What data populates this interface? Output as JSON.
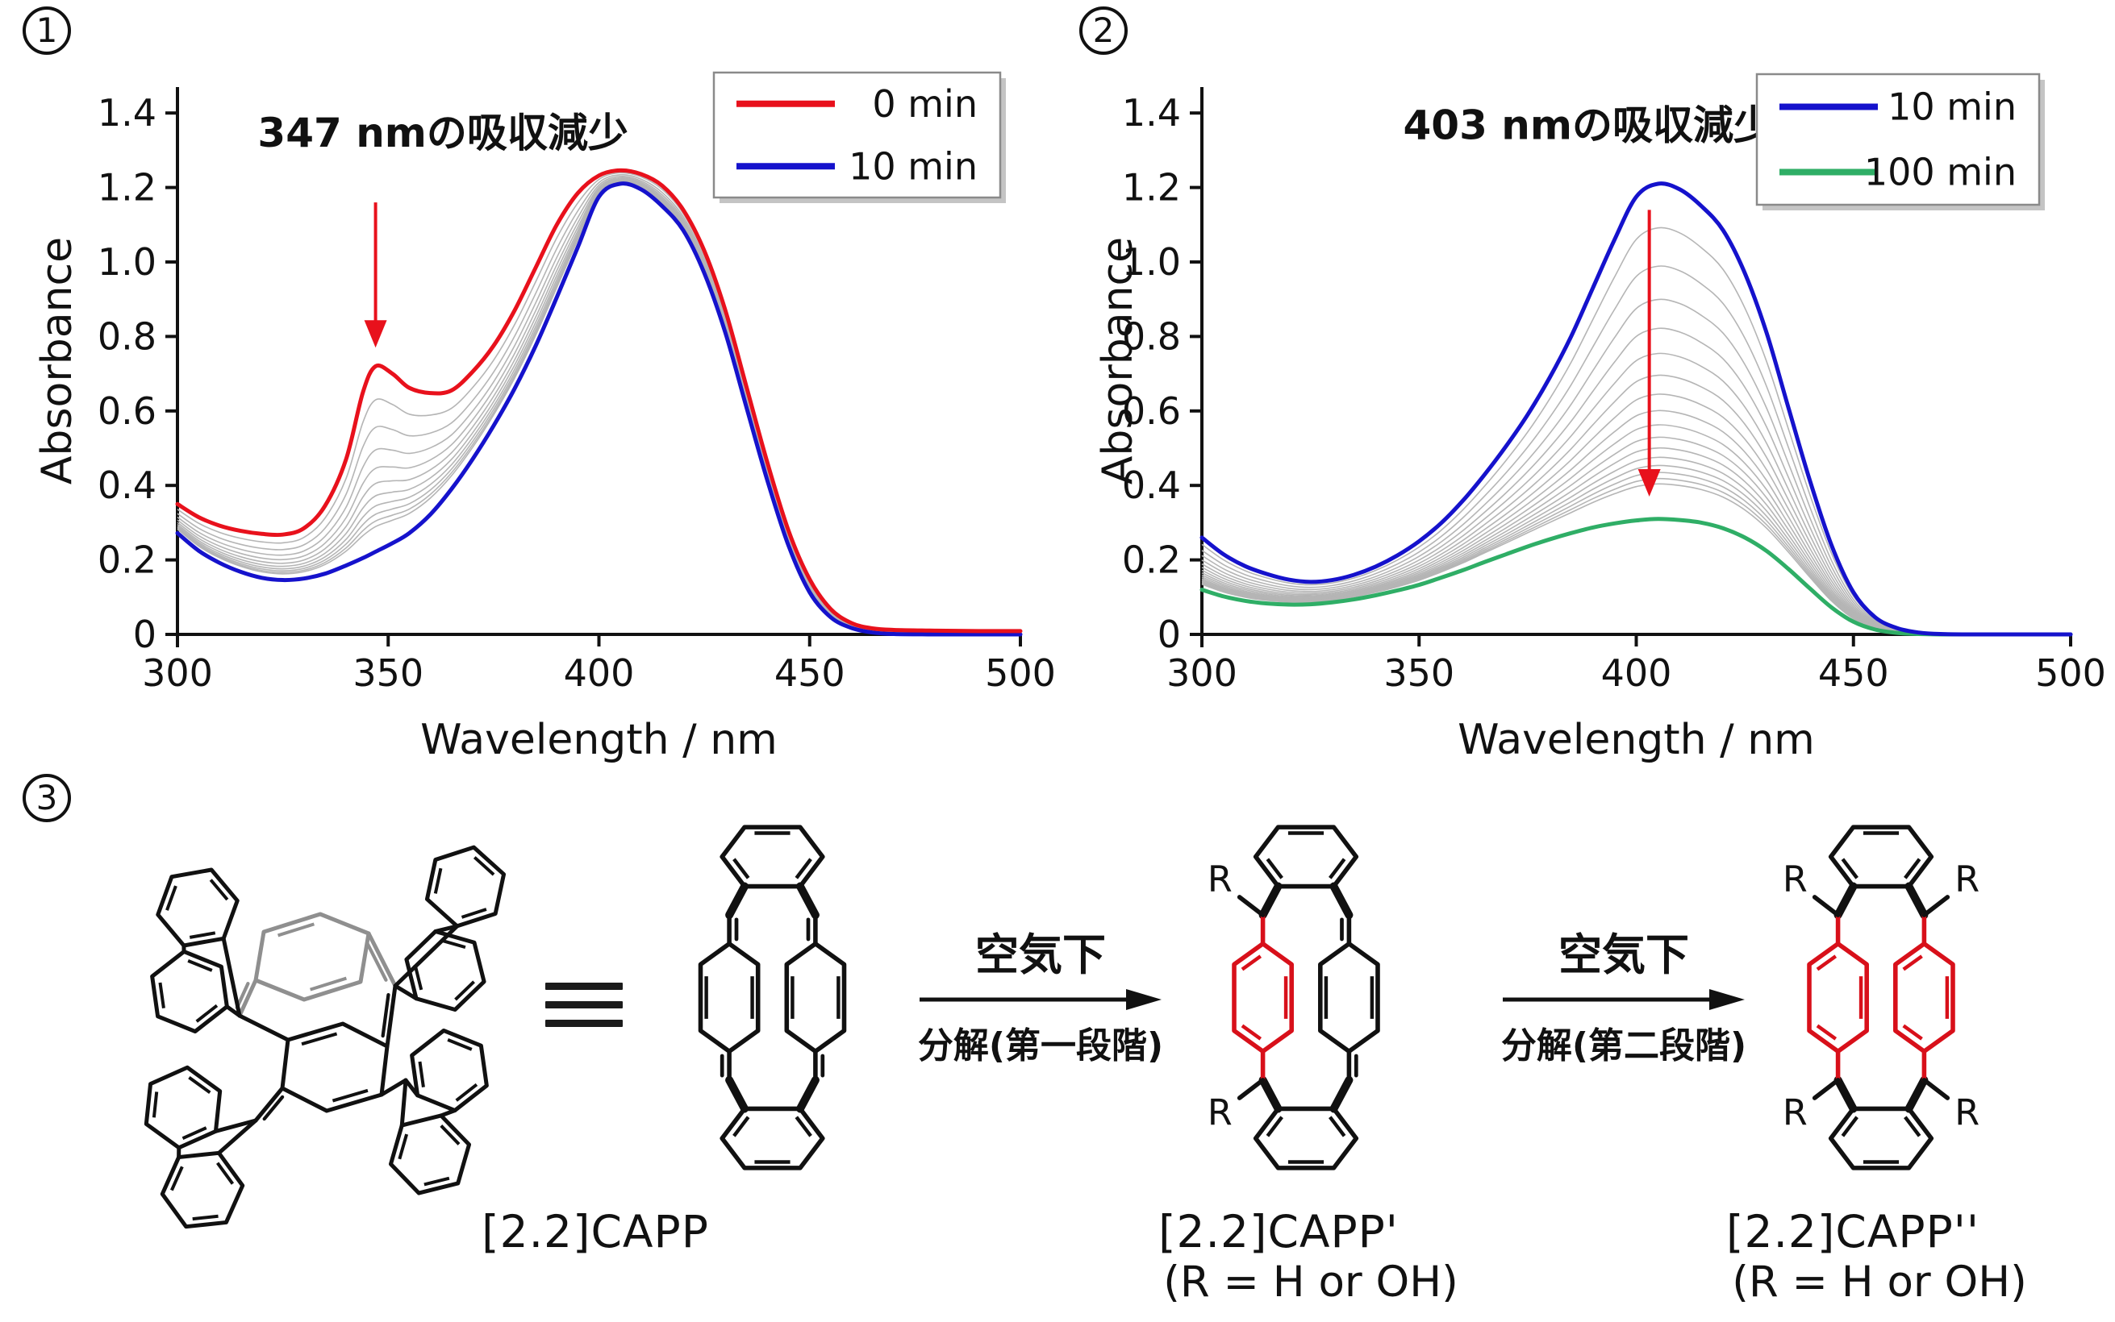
{
  "panels": [
    {
      "num": "1"
    },
    {
      "num": "2"
    },
    {
      "num": "3"
    }
  ],
  "colors": {
    "red": "#e8111c",
    "blue": "#1512cc",
    "green": "#2fae66",
    "gray_scan": "#b5b5b5",
    "struct_gray": "#8f8f8f",
    "struct_red": "#d8101a",
    "ink": "#111111"
  },
  "chart_data": [
    {
      "type": "line",
      "title": "",
      "xlabel": "Wavelength / nm",
      "ylabel": "Absorbance",
      "xlim": [
        300,
        500
      ],
      "ylim": [
        0,
        1.45
      ],
      "x_ticks": [
        "300",
        "350",
        "400",
        "450",
        "500"
      ],
      "y_ticks": [
        "0",
        "0.2",
        "0.4",
        "0.6",
        "0.8",
        "1.0",
        "1.2",
        "1.4"
      ],
      "grid": "off",
      "legend_position": "top-right",
      "legend": [
        {
          "label": "0 min",
          "color": "#e8111c"
        },
        {
          "label": "10 min",
          "color": "#1512cc"
        }
      ],
      "annotation": {
        "text": "347 nmの吸収減少",
        "text_cx": 363,
        "text_y": 1.31,
        "arrow_x": 347,
        "arrow_from": 1.16,
        "arrow_to": 0.77,
        "color": "#e8111c"
      },
      "x": [
        300,
        305,
        310,
        315,
        320,
        325,
        330,
        335,
        340,
        344,
        347,
        351,
        355,
        360,
        365,
        370,
        375,
        380,
        385,
        390,
        395,
        400,
        405,
        410,
        415,
        420,
        425,
        430,
        435,
        440,
        445,
        450,
        455,
        460,
        465,
        470,
        480,
        490,
        500
      ],
      "series": [
        {
          "name": "10 min",
          "color": "#1512cc",
          "width": 5,
          "values": [
            0.272,
            0.225,
            0.192,
            0.168,
            0.152,
            0.146,
            0.15,
            0.163,
            0.185,
            0.205,
            0.222,
            0.245,
            0.272,
            0.322,
            0.39,
            0.47,
            0.56,
            0.66,
            0.775,
            0.905,
            1.04,
            1.175,
            1.21,
            1.195,
            1.15,
            1.085,
            0.97,
            0.81,
            0.61,
            0.412,
            0.238,
            0.113,
            0.046,
            0.017,
            0.005,
            0.001,
            0.0,
            0.0,
            0.0
          ]
        },
        {
          "name": "0 min",
          "color": "#e8111c",
          "width": 5,
          "values": [
            0.35,
            0.315,
            0.292,
            0.278,
            0.27,
            0.268,
            0.285,
            0.345,
            0.47,
            0.65,
            0.72,
            0.7,
            0.662,
            0.648,
            0.655,
            0.705,
            0.775,
            0.87,
            0.985,
            1.1,
            1.185,
            1.232,
            1.246,
            1.236,
            1.205,
            1.14,
            1.03,
            0.87,
            0.665,
            0.46,
            0.278,
            0.148,
            0.068,
            0.03,
            0.016,
            0.012,
            0.01,
            0.009,
            0.009
          ]
        }
      ],
      "intermediate": {
        "count": 10,
        "decay": 2.2,
        "from": "0 min",
        "to": "10 min",
        "color": "#b5b5b5",
        "note": "gray intermediate scans between 0 and 10 min"
      }
    },
    {
      "type": "line",
      "title": "",
      "xlabel": "Wavelength / nm",
      "ylabel": "Absorbance",
      "xlim": [
        300,
        500
      ],
      "ylim": [
        0,
        1.45
      ],
      "x_ticks": [
        "300",
        "350",
        "400",
        "450",
        "500"
      ],
      "y_ticks": [
        "0",
        "0.2",
        "0.4",
        "0.6",
        "0.8",
        "1.0",
        "1.2",
        "1.4"
      ],
      "grid": "off",
      "legend_position": "top-right",
      "legend": [
        {
          "label": "10 min",
          "color": "#1512cc"
        },
        {
          "label": "100 min",
          "color": "#2fae66"
        }
      ],
      "annotation": {
        "text": "403 nmの吸収減少",
        "text_cx": 389,
        "text_y": 1.33,
        "arrow_x": 403,
        "arrow_from": 1.14,
        "arrow_to": 0.37,
        "color": "#e8111c"
      },
      "x": [
        300,
        305,
        310,
        315,
        320,
        325,
        330,
        335,
        340,
        345,
        350,
        355,
        360,
        365,
        370,
        375,
        380,
        385,
        390,
        395,
        400,
        405,
        410,
        415,
        420,
        425,
        430,
        435,
        440,
        445,
        450,
        455,
        460,
        465,
        470,
        480,
        490,
        500
      ],
      "series": [
        {
          "name": "100 min",
          "color": "#2fae66",
          "width": 5,
          "values": [
            0.12,
            0.102,
            0.09,
            0.083,
            0.08,
            0.081,
            0.086,
            0.094,
            0.105,
            0.118,
            0.133,
            0.152,
            0.172,
            0.194,
            0.215,
            0.236,
            0.255,
            0.272,
            0.287,
            0.298,
            0.306,
            0.31,
            0.307,
            0.3,
            0.285,
            0.26,
            0.224,
            0.176,
            0.123,
            0.072,
            0.034,
            0.013,
            0.004,
            0.001,
            0.0,
            0.0,
            0.0,
            0.0
          ]
        },
        {
          "name": "10 min",
          "color": "#1512cc",
          "width": 5,
          "values": [
            0.26,
            0.215,
            0.183,
            0.162,
            0.147,
            0.141,
            0.146,
            0.16,
            0.182,
            0.212,
            0.25,
            0.298,
            0.358,
            0.428,
            0.505,
            0.59,
            0.688,
            0.8,
            0.93,
            1.06,
            1.175,
            1.21,
            1.195,
            1.15,
            1.085,
            0.97,
            0.81,
            0.61,
            0.412,
            0.238,
            0.113,
            0.046,
            0.017,
            0.005,
            0.001,
            0.0,
            0.0,
            0.0
          ]
        }
      ],
      "intermediate": {
        "count": 16,
        "decay": 2.4,
        "from": "10 min",
        "to": "100 min",
        "color": "#b5b5b5",
        "note": "gray intermediate scans between 10 and 100 min"
      }
    }
  ],
  "scheme": {
    "r_label": "R",
    "equivalence_symbol": "≡",
    "compounds": [
      {
        "name": "[2.2]CAPP",
        "subtitle": ""
      },
      {
        "name": "[2.2]CAPP'",
        "subtitle": "(R = H or OH)"
      },
      {
        "name": "[2.2]CAPP''",
        "subtitle": "(R = H or OH)"
      }
    ],
    "arrows": [
      {
        "top": "空気下",
        "bottom": "分解(第一段階)"
      },
      {
        "top": "空気下",
        "bottom": "分解(第二段階)"
      }
    ]
  }
}
